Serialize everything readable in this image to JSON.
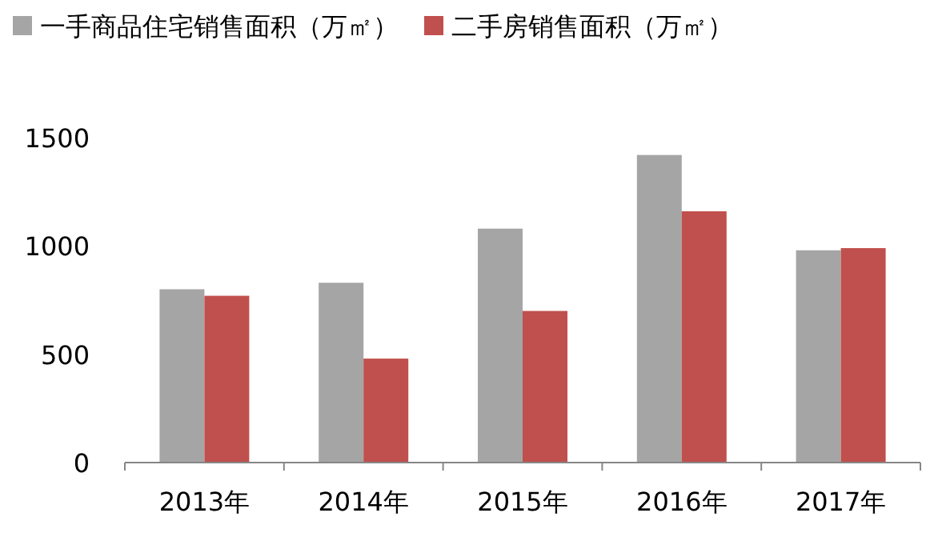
{
  "chart_data": {
    "type": "bar",
    "categories": [
      "2013年",
      "2014年",
      "2015年",
      "2016年",
      "2017年"
    ],
    "series": [
      {
        "name": "一手商品住宅销售面积（万㎡）",
        "color": "#a5a5a5",
        "values": [
          800,
          830,
          1080,
          1420,
          980
        ]
      },
      {
        "name": "二手房销售面积（万㎡）",
        "color": "#c0504d",
        "values": [
          770,
          480,
          700,
          1160,
          990
        ]
      }
    ],
    "ylim": [
      0,
      1500
    ],
    "yticks": [
      0,
      500,
      1000,
      1500
    ],
    "grid": false,
    "legend": "top"
  }
}
